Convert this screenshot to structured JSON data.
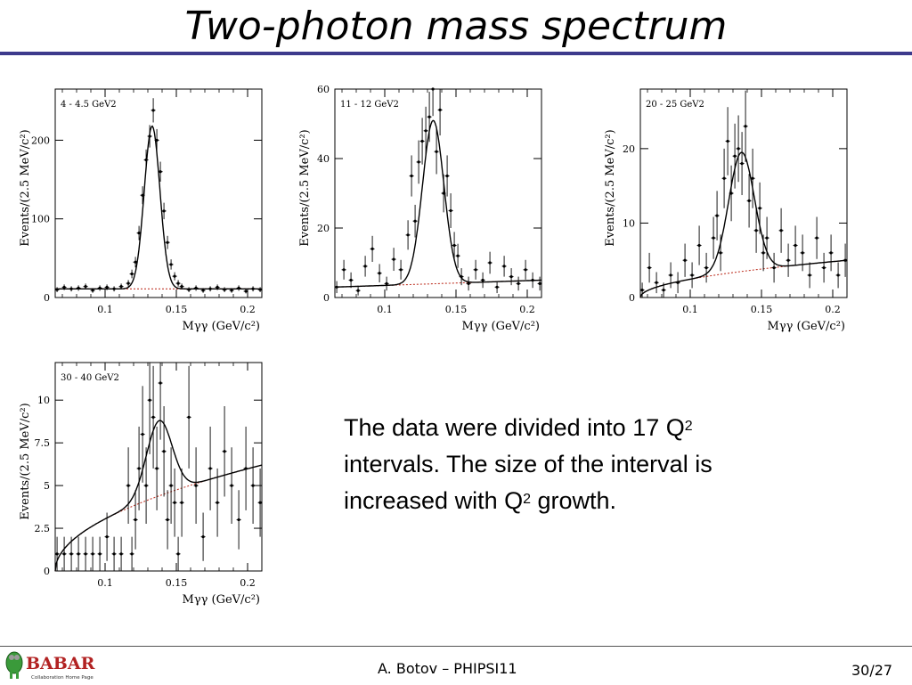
{
  "slide": {
    "title": "Two-photon mass spectrum",
    "text_line1_pre": "The data were divided into 17 Q",
    "text_line1_sup": "2",
    "text_line2": "intervals. The size of the interval is",
    "text_line3_pre": "increased with Q",
    "text_line3_sup": "2",
    "text_line3_post": " growth.",
    "footer_center": "A. Botov – PHIPSI11",
    "footer_page": "30/27",
    "logo_text": "BABAR",
    "logo_sub": "Collaboration Home Page",
    "colors": {
      "title_rule": "#3d3a8c",
      "fit_line": "#000000",
      "background_line": "#c0392b",
      "logo_green": "#3a9a3a",
      "logo_red": "#b22222"
    }
  },
  "chart_data": [
    {
      "type": "scatter",
      "title": "4 - 4.5 GeV2",
      "xlabel": "Mγγ (GeV/c²)",
      "ylabel": "Events/(2.5 MeV/c²)",
      "xlim": [
        0.065,
        0.21
      ],
      "ylim": [
        0,
        265
      ],
      "xticks": [
        0.1,
        0.15,
        0.2
      ],
      "yticks": [
        0,
        100,
        200
      ],
      "grid": false,
      "fit": {
        "peak": 0.133,
        "sigma": 0.0055,
        "amplitude": 207,
        "bg_start": 11,
        "bg_end": 11
      },
      "x": [
        0.0663,
        0.0713,
        0.0763,
        0.0813,
        0.0863,
        0.0913,
        0.0963,
        0.1013,
        0.1063,
        0.1113,
        0.1163,
        0.1188,
        0.1213,
        0.1238,
        0.1263,
        0.1288,
        0.1313,
        0.1338,
        0.1363,
        0.1388,
        0.1413,
        0.1438,
        0.1463,
        0.1488,
        0.1513,
        0.1538,
        0.1588,
        0.1638,
        0.1688,
        0.1738,
        0.1788,
        0.1838,
        0.1888,
        0.1938,
        0.1988,
        0.2038,
        0.2088
      ],
      "y": [
        10,
        13,
        11,
        12,
        14,
        9,
        12,
        13,
        11,
        14,
        18,
        30,
        45,
        82,
        130,
        175,
        205,
        238,
        200,
        160,
        110,
        70,
        42,
        27,
        18,
        14,
        10,
        12,
        9,
        11,
        13,
        10,
        9,
        12,
        8,
        11,
        10
      ]
    },
    {
      "type": "scatter",
      "title": "11 - 12 GeV2",
      "xlabel": "Mγγ (GeV/c²)",
      "ylabel": "Events/(2.5 MeV/c²)",
      "xlim": [
        0.065,
        0.21
      ],
      "ylim": [
        0,
        60
      ],
      "xticks": [
        0.1,
        0.15,
        0.2
      ],
      "yticks": [
        0,
        20,
        40,
        60
      ],
      "grid": false,
      "fit": {
        "peak": 0.134,
        "sigma": 0.0075,
        "amplitude": 47,
        "bg_start": 3,
        "bg_end": 5
      },
      "x": [
        0.0663,
        0.0713,
        0.0763,
        0.0813,
        0.0863,
        0.0913,
        0.0963,
        0.1013,
        0.1063,
        0.1113,
        0.1163,
        0.1188,
        0.1213,
        0.1238,
        0.1263,
        0.1288,
        0.1313,
        0.1338,
        0.1363,
        0.1388,
        0.1413,
        0.1438,
        0.1463,
        0.1488,
        0.1513,
        0.1538,
        0.1588,
        0.1638,
        0.1688,
        0.1738,
        0.1788,
        0.1838,
        0.1888,
        0.1938,
        0.1988,
        0.2038,
        0.2088
      ],
      "y": [
        3,
        8,
        5,
        2,
        9,
        14,
        7,
        4,
        11,
        8,
        18,
        35,
        22,
        39,
        45,
        48,
        52,
        60,
        42,
        54,
        30,
        35,
        25,
        15,
        12,
        6,
        4,
        8,
        5,
        10,
        3,
        9,
        6,
        4,
        8,
        5,
        4
      ]
    },
    {
      "type": "scatter",
      "title": "20 - 25 GeV2",
      "xlabel": "Mγγ (GeV/c²)",
      "ylabel": "Events/(2.5 MeV/c²)",
      "xlim": [
        0.065,
        0.21
      ],
      "ylim": [
        0,
        28
      ],
      "xticks": [
        0.1,
        0.15,
        0.2
      ],
      "yticks": [
        0,
        10,
        20
      ],
      "grid": false,
      "fit": {
        "peak": 0.136,
        "sigma": 0.009,
        "amplitude": 16,
        "bg_start": 0,
        "bg_end": 5,
        "bg_shape": "rising"
      },
      "x": [
        0.0663,
        0.0713,
        0.0763,
        0.0813,
        0.0863,
        0.0913,
        0.0963,
        0.1013,
        0.1063,
        0.1113,
        0.1163,
        0.1188,
        0.1213,
        0.1238,
        0.1263,
        0.1288,
        0.1313,
        0.1338,
        0.1363,
        0.1388,
        0.1413,
        0.1438,
        0.1463,
        0.1488,
        0.1513,
        0.1538,
        0.1588,
        0.1638,
        0.1688,
        0.1738,
        0.1788,
        0.1838,
        0.1888,
        0.1938,
        0.1988,
        0.2038,
        0.2088
      ],
      "y": [
        1,
        4,
        2,
        1,
        3,
        2,
        5,
        3,
        7,
        4,
        8,
        11,
        6,
        16,
        21,
        14,
        19,
        20,
        18,
        23,
        13,
        16,
        9,
        12,
        6,
        8,
        4,
        9,
        5,
        7,
        6,
        3,
        8,
        4,
        6,
        3,
        5
      ]
    },
    {
      "type": "scatter",
      "title": "30 - 40 GeV2",
      "xlabel": "Mγγ (GeV/c²)",
      "ylabel": "Events/(2.5 MeV/c²)",
      "xlim": [
        0.065,
        0.21
      ],
      "ylim": [
        0,
        12.2
      ],
      "xticks": [
        0.1,
        0.15,
        0.2
      ],
      "yticks": [
        0,
        2.5,
        5,
        7.5,
        10
      ],
      "grid": false,
      "fit": {
        "peak": 0.138,
        "sigma": 0.009,
        "amplitude": 4.4,
        "bg_start": 0,
        "bg_end": 6.2,
        "bg_shape": "rising"
      },
      "x": [
        0.0663,
        0.0713,
        0.0763,
        0.0813,
        0.0863,
        0.0913,
        0.0963,
        0.1013,
        0.1063,
        0.1113,
        0.1163,
        0.1188,
        0.1213,
        0.1238,
        0.1263,
        0.1288,
        0.1313,
        0.1338,
        0.1363,
        0.1388,
        0.1413,
        0.1438,
        0.1463,
        0.1488,
        0.1513,
        0.1538,
        0.1588,
        0.1638,
        0.1688,
        0.1738,
        0.1788,
        0.1838,
        0.1888,
        0.1938,
        0.1988,
        0.2038,
        0.2088
      ],
      "y": [
        1,
        1,
        1,
        1,
        1,
        1,
        1,
        2,
        1,
        1,
        5,
        1,
        3,
        6,
        8,
        5,
        10,
        9,
        6,
        11,
        7,
        3,
        5,
        4,
        1,
        4,
        9,
        5,
        2,
        6,
        4,
        7,
        5,
        3,
        6,
        5,
        4
      ]
    }
  ]
}
